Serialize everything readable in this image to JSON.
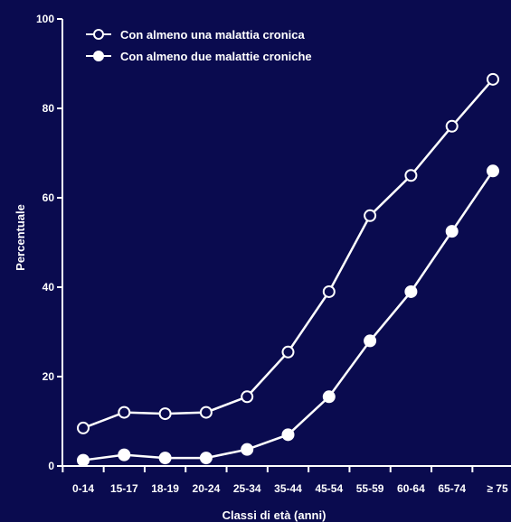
{
  "chart_data": {
    "type": "line",
    "xlabel": "Classi di età (anni)",
    "ylabel": "Percentuale",
    "ylim": [
      0,
      100
    ],
    "yticks": [
      0,
      20,
      40,
      60,
      80,
      100
    ],
    "categories": [
      "0-14",
      "15-17",
      "18-19",
      "20-24",
      "25-34",
      "35-44",
      "45-54",
      "55-59",
      "60-64",
      "65-74",
      "≥ 75"
    ],
    "series": [
      {
        "name": "Con almeno una malattia cronica",
        "marker": "open-circle",
        "values": [
          8.5,
          12,
          11.7,
          12,
          15.5,
          25.5,
          39,
          56,
          65,
          76,
          86.5
        ]
      },
      {
        "name": "Con almeno due malattie croniche",
        "marker": "filled-circle",
        "values": [
          1.3,
          2.5,
          1.8,
          1.8,
          3.7,
          7,
          15.5,
          28,
          39,
          52.5,
          66
        ]
      }
    ],
    "legend_position": "top-left",
    "grid": false,
    "colors": {
      "background": "#0a0b4f",
      "foreground": "#ffffff"
    }
  }
}
